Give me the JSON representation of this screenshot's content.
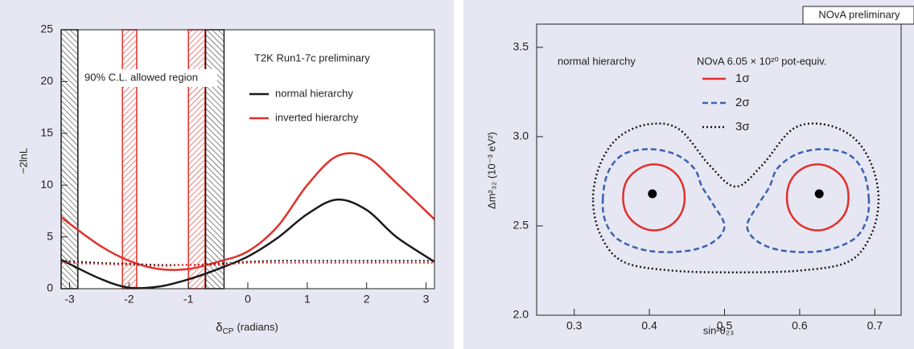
{
  "chart_data": [
    {
      "type": "line",
      "annotation": "T2K Run1-7c preliminary",
      "region_label": "90% C.L. allowed region",
      "ylabel": "−2lnL",
      "xlabel": {
        "symbol": "δ",
        "subscript": "CP",
        "text": "(radians)"
      },
      "xlim": [
        -3.14159,
        3.14159
      ],
      "ylim": [
        0,
        25
      ],
      "xticks": [
        -3,
        -2,
        -1,
        0,
        1,
        2,
        3
      ],
      "yticks": [
        0,
        5,
        10,
        15,
        20,
        25
      ],
      "x": [
        -3.14159,
        -2.5,
        -2,
        -1.5,
        -1,
        -0.5,
        0,
        0.5,
        1,
        1.5,
        2,
        2.5,
        3.14159
      ],
      "series": [
        {
          "name": "normal hierarchy",
          "color": "#1a1a1a",
          "dash": "solid",
          "values": [
            2.8,
            1.0,
            0.1,
            0.2,
            0.9,
            1.9,
            3.1,
            4.9,
            7.2,
            8.6,
            7.6,
            5.0,
            2.6
          ]
        },
        {
          "name": "inverted hierarchy",
          "color": "#e0302a",
          "dash": "solid",
          "values": [
            6.9,
            4.2,
            2.7,
            1.9,
            1.9,
            2.6,
            3.6,
            6.0,
            10.0,
            12.8,
            12.7,
            10.2,
            6.7
          ]
        },
        {
          "color": "#1a1a1a",
          "dash": "dotted",
          "values": [
            2.7,
            2.5,
            2.4,
            2.3,
            2.3,
            2.4,
            2.6,
            2.7,
            2.7,
            2.7,
            2.7,
            2.7,
            2.7
          ]
        },
        {
          "color": "#e0302a",
          "dash": "dotted",
          "values": [
            2.5,
            2.4,
            2.3,
            2.2,
            2.3,
            2.3,
            2.5,
            2.5,
            2.5,
            2.5,
            2.5,
            2.5,
            2.5
          ]
        }
      ],
      "regions": [
        {
          "color": "#1a1a1a",
          "x": [
            -3.14159,
            -2.86
          ]
        },
        {
          "color": "#e0302a",
          "x": [
            -2.11,
            -1.87
          ]
        },
        {
          "color": "#e0302a",
          "x": [
            -1.0,
            -0.72
          ]
        },
        {
          "color": "#1a1a1a",
          "x": [
            -0.71,
            -0.4
          ]
        }
      ]
    },
    {
      "type": "contour",
      "tag": "NOvA preliminary",
      "annotation": "normal hierarchy",
      "exposure": "NOvA 6.05 × 10²⁰ pot-equiv.",
      "ylabel": "Δm²₃₂ (10⁻³ eV²)",
      "xlabel": "sin²θ₂₃",
      "xlim": [
        0.25,
        0.735
      ],
      "ylim": [
        2.0,
        3.63
      ],
      "xticks": [
        0.3,
        0.4,
        0.5,
        0.6,
        0.7
      ],
      "yticks": [
        {
          "value": 2.0,
          "label": "2.0"
        },
        2.5,
        {
          "value": 3.0,
          "label": "3.0"
        },
        3.5
      ],
      "points": {
        "color": "#000000",
        "x": [
          0.404,
          0.626
        ],
        "y": [
          2.68,
          2.68
        ]
      },
      "series": [
        {
          "name": "1σ",
          "color": "#e0302a",
          "dash": "solid",
          "contours": [
            {
              "x": [
                0.447,
                0.442,
                0.427,
                0.406,
                0.386,
                0.37,
                0.365,
                0.37,
                0.386,
                0.406,
                0.427,
                0.442
              ],
              "y": [
                2.66,
                2.753,
                2.82,
                2.845,
                2.82,
                2.753,
                2.66,
                2.568,
                2.5,
                2.475,
                2.5,
                2.568
              ]
            },
            {
              "x": [
                0.583,
                0.588,
                0.603,
                0.624,
                0.644,
                0.66,
                0.665,
                0.66,
                0.644,
                0.624,
                0.603,
                0.588
              ],
              "y": [
                2.66,
                2.753,
                2.82,
                2.845,
                2.82,
                2.753,
                2.66,
                2.568,
                2.5,
                2.475,
                2.5,
                2.568
              ]
            }
          ]
        },
        {
          "name": "2σ",
          "color": "#3a62b0",
          "dash": "dashed",
          "contours": [
            {
              "x": [
                0.338,
                0.345,
                0.365,
                0.4,
                0.435,
                0.46,
                0.47,
                0.485,
                0.5,
                0.485,
                0.45,
                0.4,
                0.36,
                0.342
              ],
              "y": [
                2.65,
                2.8,
                2.9,
                2.93,
                2.9,
                2.82,
                2.72,
                2.62,
                2.5,
                2.41,
                2.36,
                2.36,
                2.42,
                2.52
              ]
            },
            {
              "x": [
                0.692,
                0.685,
                0.665,
                0.63,
                0.595,
                0.57,
                0.56,
                0.545,
                0.53,
                0.545,
                0.58,
                0.63,
                0.67,
                0.688
              ],
              "y": [
                2.65,
                2.8,
                2.9,
                2.93,
                2.9,
                2.82,
                2.72,
                2.62,
                2.5,
                2.41,
                2.36,
                2.36,
                2.42,
                2.52
              ]
            }
          ]
        },
        {
          "name": "3σ",
          "color": "#1a1a1a",
          "dash": "dotted",
          "contours": [
            {
              "x": [
                0.325,
                0.335,
                0.36,
                0.4,
                0.44,
                0.48,
                0.515,
                0.55,
                0.59,
                0.63,
                0.67,
                0.695,
                0.705,
                0.695,
                0.665,
                0.6,
                0.515,
                0.43,
                0.365,
                0.335
              ],
              "y": [
                2.65,
                2.85,
                3.0,
                3.07,
                3.04,
                2.84,
                2.72,
                2.84,
                3.04,
                3.07,
                3.0,
                2.85,
                2.65,
                2.45,
                2.3,
                2.25,
                2.24,
                2.25,
                2.3,
                2.45
              ]
            }
          ]
        }
      ]
    }
  ]
}
